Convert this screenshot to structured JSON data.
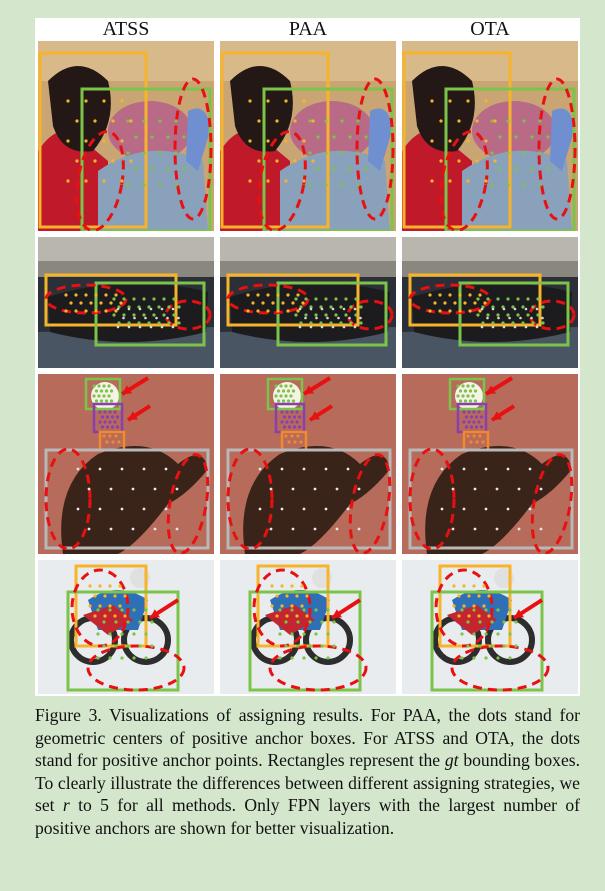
{
  "columns": [
    "ATSS",
    "PAA",
    "OTA"
  ],
  "rows": [
    {
      "subject": "person-carrying-child"
    },
    {
      "subject": "tv-remote"
    },
    {
      "subject": "bear-and-bird"
    },
    {
      "subject": "motorcyclist"
    }
  ],
  "colors": {
    "background": "#d4e6cc",
    "box_orange": "#f7b42a",
    "box_green": "#7cc34a",
    "box_gray": "#b8b8b8",
    "box_purple": "#8a3fb0",
    "highlight_red": "#e81010"
  },
  "caption": {
    "part1": "Figure 3. Visualizations of assigning results. For PAA, the dots stand for geometric centers of positive anchor boxes. For ATSS and OTA, the dots stand for positive anchor points. Rectangles represent the ",
    "gt": "gt",
    "part2": " bounding boxes. To clearly illustrate the differences between different assigning strategies, we set ",
    "r": "r",
    "part3": " to 5 for all methods. Only FPN layers with the largest number of positive anchors are shown for better visualization."
  }
}
